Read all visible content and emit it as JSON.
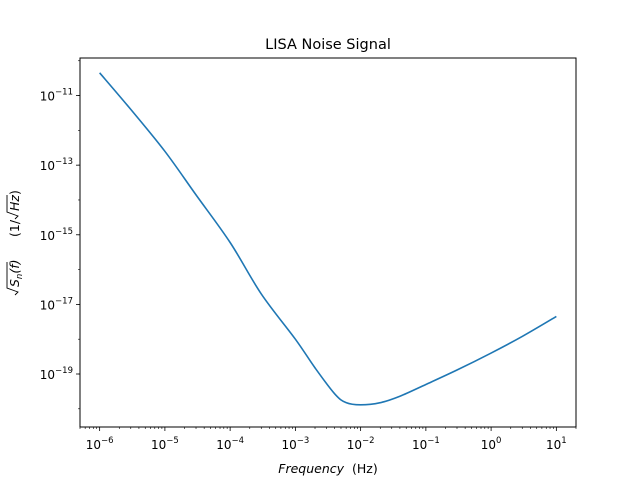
{
  "chart_data": {
    "type": "line",
    "title": "LISA Noise Signal",
    "xlabel": "Frequency",
    "xlabel_unit": "(Hz)",
    "ylabel_sqrt": "S",
    "ylabel_sub": "n",
    "ylabel_arg": "(f)",
    "ylabel_unit": "(1/",
    "ylabel_unit_sqrt": "Hz",
    "ylabel_unit_close": ")",
    "x_scale": "log",
    "y_scale": "log",
    "xlim": [
      5e-07,
      20.0
    ],
    "ylim": [
      3e-21,
      1.2e-10
    ],
    "grid": false,
    "x_ticks": [
      {
        "base": "10",
        "exp": "−6",
        "value": 1e-06
      },
      {
        "base": "10",
        "exp": "−5",
        "value": 1e-05
      },
      {
        "base": "10",
        "exp": "−4",
        "value": 0.0001
      },
      {
        "base": "10",
        "exp": "−3",
        "value": 0.001
      },
      {
        "base": "10",
        "exp": "−2",
        "value": 0.01
      },
      {
        "base": "10",
        "exp": "−1",
        "value": 0.1
      },
      {
        "base": "10",
        "exp": "0",
        "value": 1
      },
      {
        "base": "10",
        "exp": "1",
        "value": 10
      }
    ],
    "y_ticks": [
      {
        "base": "10",
        "exp": "−19",
        "value": 1e-19
      },
      {
        "base": "10",
        "exp": "−17",
        "value": 1e-17
      },
      {
        "base": "10",
        "exp": "−15",
        "value": 1e-15
      },
      {
        "base": "10",
        "exp": "−13",
        "value": 1e-13
      },
      {
        "base": "10",
        "exp": "−11",
        "value": 1e-11
      }
    ],
    "series": [
      {
        "color": "#1f77b4",
        "x": [
          1e-06,
          3e-06,
          1e-05,
          3e-05,
          0.0001,
          0.0003,
          0.001,
          0.002,
          0.004,
          0.006,
          0.01,
          0.02,
          0.04,
          0.1,
          0.3,
          1,
          3,
          10
        ],
        "y": [
          4.5e-11,
          4e-12,
          2.5e-13,
          1.4e-14,
          6e-16,
          2e-17,
          1e-18,
          1.5e-19,
          2.7e-20,
          1.5e-20,
          1.3e-20,
          1.5e-20,
          2.3e-20,
          5e-20,
          1.3e-19,
          4e-19,
          1.2e-18,
          4.5e-18
        ]
      }
    ]
  }
}
